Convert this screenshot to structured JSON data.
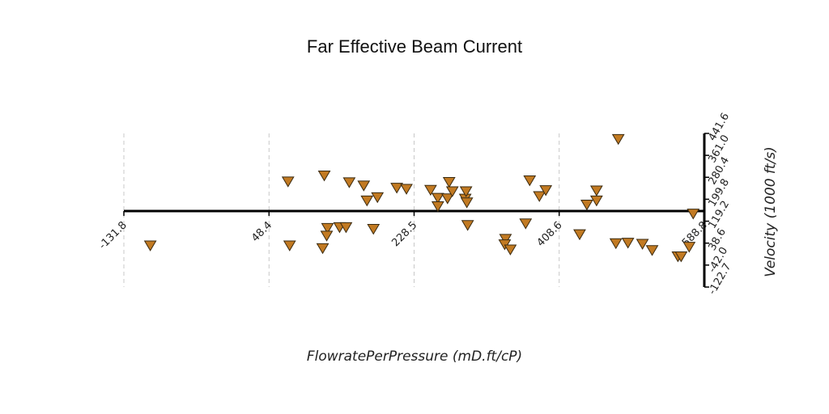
{
  "chart_data": {
    "type": "scatter",
    "title": "Far Effective Beam Current",
    "xlabel": "FlowratePerPressure (mD.ft/cP)",
    "ylabel": "Velocity (1000 ft/s)",
    "xlim": [
      -131.8,
      588.8
    ],
    "ylim": [
      -122.7,
      441.6
    ],
    "xticks": [
      -131.8,
      48.4,
      228.5,
      408.6,
      588.8
    ],
    "xtick_labels": [
      "-131.8",
      "48.4",
      "228.5",
      "408.6",
      "588.8"
    ],
    "yticks": [
      441.6,
      361.0,
      280.4,
      199.8,
      119.2,
      38.6,
      -42.0,
      -122.7
    ],
    "ytick_labels": [
      "441.6",
      "361.0",
      "280.4",
      "199.8",
      "119.2",
      "38.6",
      "-42.0",
      "-122.7"
    ],
    "grid": "x-dashed",
    "marker": "triangle-down",
    "color": "#c27a22",
    "series": [
      {
        "points": [
          [
            -99,
            30
          ],
          [
            72,
            265
          ],
          [
            74,
            30
          ],
          [
            117,
            287
          ],
          [
            115,
            20
          ],
          [
            121,
            94
          ],
          [
            120,
            66
          ],
          [
            136,
            97
          ],
          [
            144,
            97
          ],
          [
            148,
            262
          ],
          [
            166,
            250
          ],
          [
            170,
            195
          ],
          [
            178,
            91
          ],
          [
            183,
            207
          ],
          [
            207,
            242
          ],
          [
            219,
            238
          ],
          [
            249,
            234
          ],
          [
            258,
            205
          ],
          [
            258,
            174
          ],
          [
            270,
            203
          ],
          [
            272,
            263
          ],
          [
            276,
            229
          ],
          [
            292,
            202
          ],
          [
            293,
            229
          ],
          [
            294,
            188
          ],
          [
            295,
            105
          ],
          [
            342,
            54
          ],
          [
            341,
            34
          ],
          [
            348,
            15
          ],
          [
            367,
            111
          ],
          [
            372,
            269
          ],
          [
            384,
            211
          ],
          [
            392,
            233
          ],
          [
            434,
            71
          ],
          [
            443,
            180
          ],
          [
            455,
            232
          ],
          [
            455,
            195
          ],
          [
            479,
            38
          ],
          [
            494,
            40
          ],
          [
            512,
            36
          ],
          [
            524,
            13
          ],
          [
            556,
            -10
          ],
          [
            560,
            -10
          ],
          [
            570,
            25
          ],
          [
            575,
            147
          ],
          [
            482,
            421
          ]
        ]
      }
    ]
  }
}
